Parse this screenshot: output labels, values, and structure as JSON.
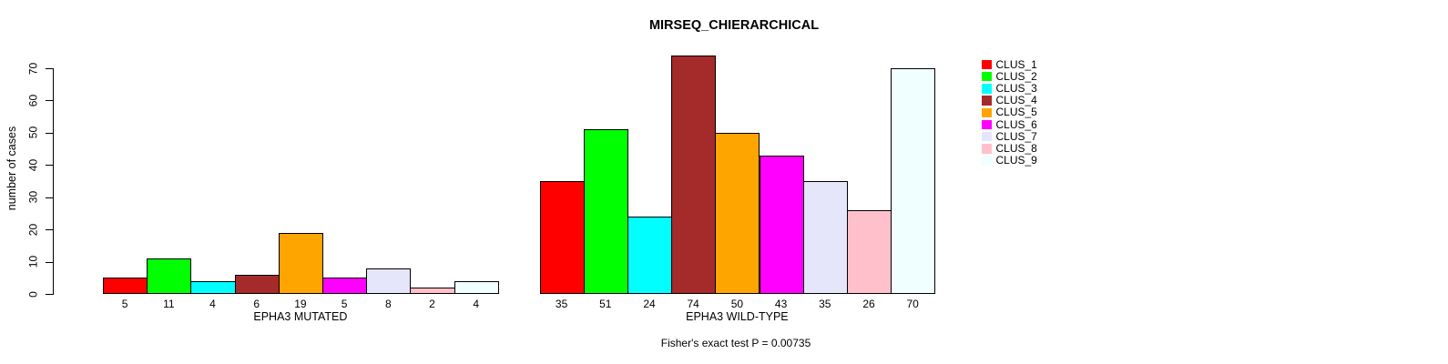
{
  "chart_data": {
    "type": "bar",
    "title": "MIRSEQ_CHIERARCHICAL",
    "ylabel": "number of cases",
    "ylim": [
      0,
      70
    ],
    "yticks": [
      0,
      10,
      20,
      30,
      40,
      50,
      60,
      70
    ],
    "grid": false,
    "legend_position": "top-right",
    "categories": [
      "EPHA3 MUTATED",
      "EPHA3 WILD-TYPE"
    ],
    "series": [
      {
        "name": "CLUS_1",
        "color": "#FF0000",
        "values": [
          5,
          35
        ]
      },
      {
        "name": "CLUS_2",
        "color": "#00FF00",
        "values": [
          11,
          51
        ]
      },
      {
        "name": "CLUS_3",
        "color": "#00FFFF",
        "values": [
          4,
          24
        ]
      },
      {
        "name": "CLUS_4",
        "color": "#A52A2A",
        "values": [
          6,
          74
        ]
      },
      {
        "name": "CLUS_5",
        "color": "#FFA500",
        "values": [
          19,
          50
        ]
      },
      {
        "name": "CLUS_6",
        "color": "#FF00FF",
        "values": [
          5,
          43
        ]
      },
      {
        "name": "CLUS_7",
        "color": "#E6E6FA",
        "values": [
          8,
          35
        ]
      },
      {
        "name": "CLUS_8",
        "color": "#FFC0CB",
        "values": [
          2,
          26
        ]
      },
      {
        "name": "CLUS_9",
        "color": "#F0FFFF",
        "values": [
          4,
          70
        ]
      }
    ],
    "bar_value_labels_shown": true,
    "footnote": "Fisher's exact test P = 0.00735"
  }
}
